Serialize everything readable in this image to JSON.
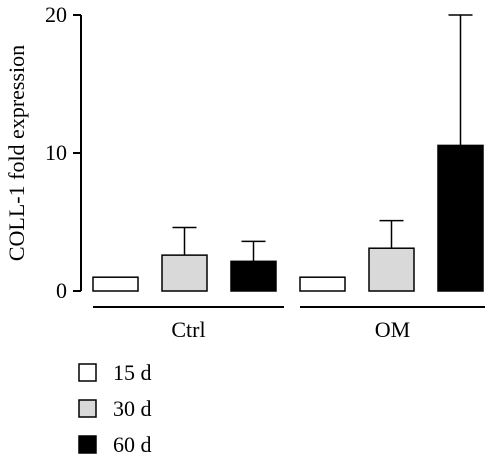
{
  "chart_data": {
    "type": "bar",
    "title": "",
    "xlabel": "",
    "ylabel": "COLL-1 fold expression",
    "ylim": [
      0,
      20
    ],
    "yticks": [
      0,
      10,
      20
    ],
    "grid": false,
    "legend_position": "bottom-left",
    "groups": [
      "Ctrl",
      "OM"
    ],
    "series": [
      {
        "name": "15 d",
        "color": "#ffffff",
        "values": [
          1.0,
          1.0
        ],
        "errors": [
          0,
          0
        ]
      },
      {
        "name": "30 d",
        "color": "#d9d9d9",
        "values": [
          2.6,
          3.1
        ],
        "errors": [
          2.0,
          2.0
        ]
      },
      {
        "name": "60 d",
        "color": "#000000",
        "values": [
          2.15,
          10.55
        ],
        "errors": [
          1.45,
          9.45
        ]
      }
    ]
  }
}
